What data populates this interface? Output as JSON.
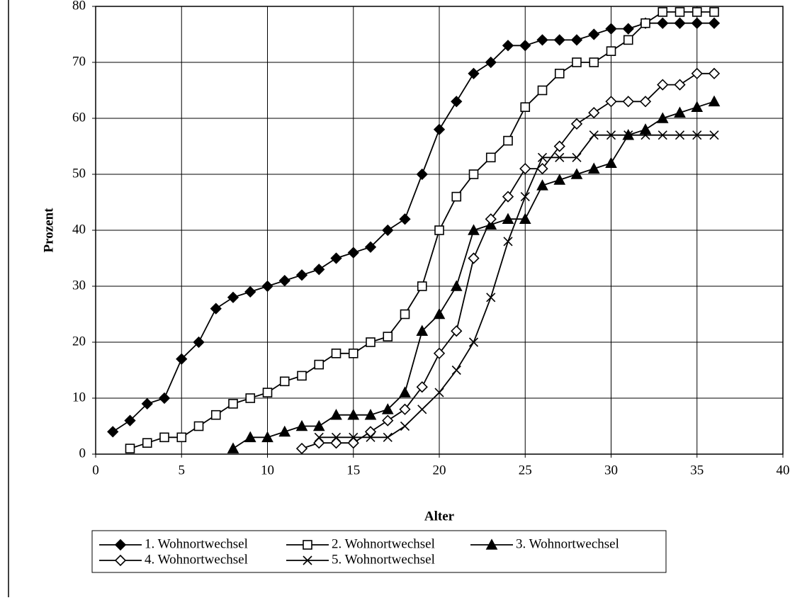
{
  "chart_data": {
    "type": "line",
    "x_label": "Alter",
    "y_label": "Prozent",
    "x": [
      1,
      2,
      3,
      4,
      5,
      6,
      7,
      8,
      9,
      10,
      11,
      12,
      13,
      14,
      15,
      16,
      17,
      18,
      19,
      20,
      21,
      22,
      23,
      24,
      25,
      26,
      27,
      28,
      29,
      30,
      31,
      32,
      33,
      34,
      35,
      36
    ],
    "series": [
      {
        "name": "1. Wohnortwechsel",
        "color": "#000000",
        "marker": "diamond-filled",
        "values": [
          4,
          6,
          9,
          10,
          17,
          20,
          26,
          28,
          29,
          30,
          31,
          32,
          33,
          35,
          36,
          37,
          40,
          42,
          50,
          58,
          63,
          68,
          70,
          73,
          73,
          74,
          74,
          74,
          75,
          76,
          76,
          77,
          77,
          77,
          77,
          77
        ]
      },
      {
        "name": "2. Wohnortwechsel",
        "color": "#000000",
        "marker": "square-open",
        "values": [
          null,
          1,
          2,
          3,
          3,
          5,
          7,
          9,
          10,
          11,
          13,
          14,
          16,
          18,
          18,
          20,
          21,
          25,
          30,
          40,
          46,
          50,
          53,
          56,
          62,
          65,
          68,
          70,
          70,
          72,
          74,
          77,
          79,
          79,
          79,
          79
        ]
      },
      {
        "name": "3. Wohnortwechsel",
        "color": "#000000",
        "marker": "triangle-filled",
        "values": [
          null,
          null,
          null,
          null,
          null,
          null,
          null,
          1,
          3,
          3,
          4,
          5,
          5,
          7,
          7,
          7,
          8,
          11,
          22,
          25,
          30,
          40,
          41,
          42,
          42,
          48,
          49,
          50,
          51,
          52,
          57,
          58,
          60,
          61,
          62,
          63
        ]
      },
      {
        "name": "4. Wohnortwechsel",
        "color": "#000000",
        "marker": "diamond-open",
        "values": [
          null,
          null,
          null,
          null,
          null,
          null,
          null,
          null,
          null,
          null,
          null,
          1,
          2,
          2,
          2,
          4,
          6,
          8,
          12,
          18,
          22,
          35,
          42,
          46,
          51,
          51,
          55,
          59,
          61,
          63,
          63,
          63,
          66,
          66,
          68,
          68
        ]
      },
      {
        "name": "5. Wohnortwechsel",
        "color": "#000000",
        "marker": "cross",
        "values": [
          null,
          null,
          null,
          null,
          null,
          null,
          null,
          null,
          null,
          null,
          null,
          null,
          3,
          3,
          3,
          3,
          3,
          5,
          8,
          11,
          15,
          20,
          28,
          38,
          46,
          53,
          53,
          53,
          57,
          57,
          57,
          57,
          57,
          57,
          57,
          57
        ]
      }
    ],
    "xlim": [
      0,
      40
    ],
    "xticks": [
      0,
      5,
      10,
      15,
      20,
      25,
      30,
      35,
      40
    ],
    "ylim": [
      0,
      80
    ],
    "yticks": [
      0,
      10,
      20,
      30,
      40,
      50,
      60,
      70,
      80
    ],
    "grid": true
  }
}
